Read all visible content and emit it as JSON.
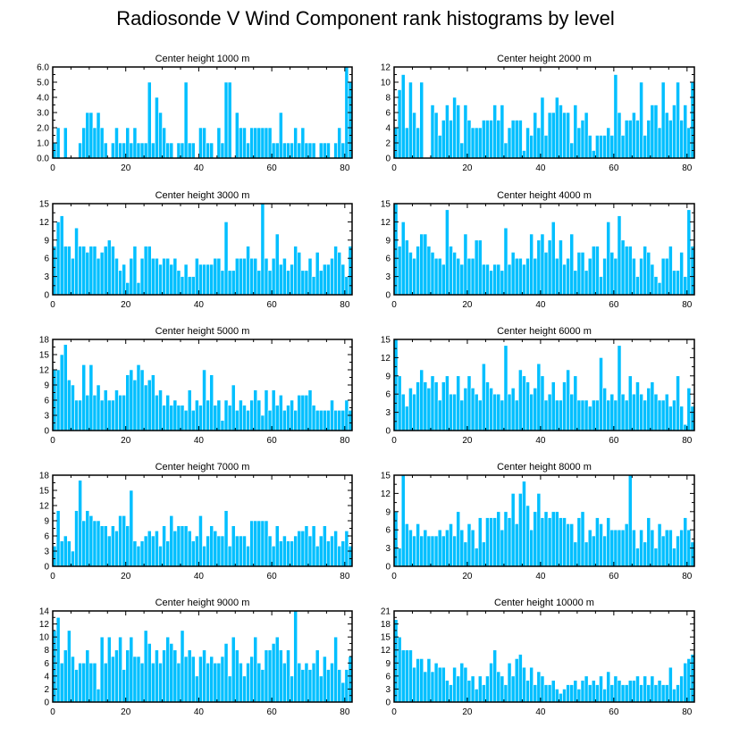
{
  "figure": {
    "title": "Radiosonde V Wind Component rank histograms by level",
    "bar_color": "#00BFFF",
    "frame_color": "#000000",
    "background": "#FFFFFF"
  },
  "chart_data": [
    {
      "type": "bar",
      "title": "Center height 1000 m",
      "xlim": [
        0,
        82
      ],
      "ylim": [
        0,
        6
      ],
      "xticks": [
        0,
        20,
        40,
        60,
        80
      ],
      "xtick_labels": [
        "0",
        "20",
        "40",
        "60",
        "80"
      ],
      "yticks": [
        0,
        1,
        2,
        3,
        4,
        5,
        6
      ],
      "ytick_labels": [
        "0.0",
        "1.0",
        "2.0",
        "3.0",
        "4.0",
        "5.0",
        "6.0"
      ],
      "y_axis_side": "left",
      "values": [
        1,
        2,
        0,
        2,
        0,
        0,
        0,
        1,
        2,
        3,
        3,
        2,
        3,
        2,
        1,
        0,
        1,
        2,
        1,
        1,
        2,
        1,
        2,
        1,
        1,
        1,
        5,
        1,
        4,
        3,
        2,
        1,
        1,
        0,
        1,
        1,
        5,
        1,
        1,
        0,
        2,
        2,
        1,
        1,
        0,
        2,
        1,
        5,
        5,
        0,
        3,
        2,
        2,
        1,
        2,
        2,
        2,
        2,
        2,
        2,
        1,
        1,
        3,
        1,
        1,
        1,
        2,
        1,
        2,
        1,
        1,
        1,
        0,
        1,
        1,
        1,
        0,
        1,
        2,
        1,
        6,
        5
      ]
    },
    {
      "type": "bar",
      "title": "Center height 2000 m",
      "xlim": [
        0,
        82
      ],
      "ylim": [
        0,
        12
      ],
      "xticks": [
        0,
        20,
        40,
        60,
        80
      ],
      "xtick_labels": [
        "0",
        "20",
        "40",
        "60",
        "80"
      ],
      "yticks": [
        0,
        2,
        4,
        6,
        8,
        10,
        12
      ],
      "ytick_labels": [
        "0",
        "2",
        "4",
        "6",
        "8",
        "10",
        "12"
      ],
      "y_axis_side": "left",
      "values": [
        4,
        9,
        11,
        4,
        10,
        6,
        4,
        10,
        0,
        0,
        7,
        6,
        3,
        5,
        7,
        5,
        8,
        7,
        2,
        7,
        5,
        4,
        4,
        4,
        5,
        5,
        5,
        7,
        5,
        7,
        2,
        4,
        5,
        5,
        5,
        1,
        4,
        3,
        6,
        4,
        8,
        3,
        6,
        6,
        8,
        7,
        6,
        6,
        2,
        7,
        4,
        5,
        6,
        3,
        1,
        3,
        3,
        3,
        4,
        3,
        11,
        6,
        3,
        5,
        5,
        6,
        5,
        10,
        3,
        5,
        7,
        7,
        4,
        10,
        6,
        5,
        7,
        10,
        5,
        7,
        4,
        10
      ]
    },
    {
      "type": "bar",
      "title": "Center height 3000 m",
      "xlim": [
        0,
        82
      ],
      "ylim": [
        0,
        15
      ],
      "xticks": [
        0,
        20,
        40,
        60,
        80
      ],
      "xtick_labels": [
        "0",
        "20",
        "40",
        "60",
        "80"
      ],
      "yticks": [
        0,
        3,
        6,
        9,
        12,
        15
      ],
      "ytick_labels": [
        "0",
        "3",
        "6",
        "9",
        "12",
        "15"
      ],
      "y_axis_side": "left",
      "values": [
        8,
        12,
        13,
        8,
        8,
        6,
        11,
        8,
        8,
        7,
        8,
        8,
        6,
        7,
        8,
        9,
        8,
        6,
        4,
        5,
        2,
        6,
        8,
        2,
        6,
        8,
        8,
        6,
        6,
        5,
        6,
        6,
        5,
        6,
        4,
        3,
        5,
        3,
        3,
        6,
        5,
        5,
        5,
        5,
        6,
        6,
        4,
        12,
        4,
        4,
        6,
        6,
        6,
        8,
        6,
        6,
        4,
        15,
        6,
        4,
        6,
        10,
        5,
        6,
        4,
        5,
        8,
        7,
        4,
        4,
        6,
        3,
        7,
        4,
        5,
        5,
        6,
        8,
        7,
        5,
        3,
        8
      ]
    },
    {
      "type": "bar",
      "title": "Center height 4000 m",
      "xlim": [
        0,
        82
      ],
      "ylim": [
        0,
        15
      ],
      "xticks": [
        0,
        20,
        40,
        60,
        80
      ],
      "xtick_labels": [
        "0",
        "20",
        "40",
        "60",
        "80"
      ],
      "yticks": [
        0,
        3,
        6,
        9,
        12,
        15
      ],
      "ytick_labels": [
        "0",
        "3",
        "6",
        "9",
        "12",
        "15"
      ],
      "y_axis_side": "left",
      "values": [
        15,
        8,
        12,
        9,
        7,
        6,
        8,
        10,
        10,
        8,
        7,
        6,
        6,
        5,
        14,
        8,
        7,
        6,
        5,
        10,
        6,
        6,
        9,
        9,
        5,
        5,
        4,
        5,
        5,
        4,
        11,
        5,
        7,
        6,
        6,
        5,
        6,
        10,
        6,
        9,
        10,
        7,
        9,
        12,
        6,
        9,
        5,
        6,
        10,
        4,
        7,
        7,
        4,
        6,
        8,
        8,
        3,
        6,
        12,
        7,
        6,
        13,
        9,
        8,
        8,
        6,
        3,
        6,
        8,
        7,
        5,
        3,
        2,
        6,
        6,
        8,
        4,
        4,
        7,
        3,
        14,
        8
      ]
    },
    {
      "type": "bar",
      "title": "Center height 5000 m",
      "xlim": [
        0,
        82
      ],
      "ylim": [
        0,
        18
      ],
      "xticks": [
        0,
        20,
        40,
        60,
        80
      ],
      "xtick_labels": [
        "0",
        "20",
        "40",
        "60",
        "80"
      ],
      "yticks": [
        0,
        3,
        6,
        9,
        12,
        15,
        18
      ],
      "ytick_labels": [
        "0",
        "3",
        "6",
        "9",
        "12",
        "15",
        "18"
      ],
      "y_axis_side": "left",
      "values": [
        12,
        12,
        15,
        17,
        10,
        9,
        6,
        6,
        13,
        7,
        13,
        7,
        9,
        6,
        8,
        6,
        6,
        8,
        7,
        7,
        11,
        12,
        10,
        13,
        12,
        9,
        10,
        11,
        7,
        8,
        5,
        7,
        5,
        6,
        5,
        5,
        4,
        8,
        4,
        6,
        5,
        12,
        6,
        11,
        5,
        6,
        2,
        6,
        5,
        9,
        4,
        6,
        5,
        4,
        6,
        8,
        6,
        3,
        8,
        4,
        8,
        5,
        7,
        4,
        5,
        6,
        4,
        7,
        7,
        7,
        8,
        5,
        4,
        4,
        4,
        4,
        6,
        4,
        4,
        4,
        6,
        4
      ]
    },
    {
      "type": "bar",
      "title": "Center height 6000 m",
      "xlim": [
        0,
        82
      ],
      "ylim": [
        0,
        15
      ],
      "xticks": [
        0,
        20,
        40,
        60,
        80
      ],
      "xtick_labels": [
        "0",
        "20",
        "40",
        "60",
        "80"
      ],
      "yticks": [
        0,
        3,
        6,
        9,
        12,
        15
      ],
      "ytick_labels": [
        "0",
        "3",
        "6",
        "9",
        "12",
        "15"
      ],
      "y_axis_side": "left",
      "values": [
        15,
        9,
        6,
        4,
        7,
        6,
        8,
        10,
        8,
        7,
        9,
        8,
        5,
        8,
        9,
        6,
        6,
        9,
        5,
        7,
        9,
        7,
        6,
        5,
        11,
        8,
        7,
        6,
        6,
        5,
        14,
        6,
        7,
        5,
        10,
        9,
        8,
        6,
        7,
        11,
        9,
        5,
        6,
        8,
        5,
        5,
        8,
        10,
        6,
        9,
        5,
        5,
        5,
        4,
        5,
        5,
        12,
        7,
        5,
        6,
        5,
        14,
        6,
        5,
        9,
        6,
        8,
        6,
        5,
        7,
        8,
        6,
        5,
        5,
        6,
        4,
        5,
        9,
        4,
        1,
        7,
        4
      ]
    },
    {
      "type": "bar",
      "title": "Center height 7000 m",
      "xlim": [
        0,
        82
      ],
      "ylim": [
        0,
        18
      ],
      "xticks": [
        0,
        20,
        40,
        60,
        80
      ],
      "xtick_labels": [
        "0",
        "20",
        "40",
        "60",
        "80"
      ],
      "yticks": [
        0,
        3,
        6,
        9,
        12,
        15,
        18
      ],
      "ytick_labels": [
        "0",
        "3",
        "6",
        "9",
        "12",
        "15",
        "18"
      ],
      "y_axis_side": "left",
      "values": [
        4,
        11,
        5,
        6,
        5,
        3,
        11,
        17,
        9,
        11,
        10,
        9,
        9,
        8,
        8,
        6,
        8,
        7,
        10,
        10,
        8,
        15,
        5,
        4,
        5,
        6,
        7,
        6,
        7,
        4,
        8,
        5,
        10,
        7,
        8,
        8,
        8,
        7,
        5,
        6,
        10,
        4,
        6,
        8,
        7,
        6,
        6,
        11,
        4,
        8,
        6,
        6,
        6,
        4,
        9,
        9,
        9,
        9,
        9,
        6,
        4,
        8,
        5,
        6,
        5,
        5,
        6,
        7,
        7,
        8,
        6,
        8,
        4,
        6,
        8,
        5,
        6,
        7,
        4,
        5,
        7,
        4
      ]
    },
    {
      "type": "bar",
      "title": "Center height 8000 m",
      "xlim": [
        0,
        82
      ],
      "ylim": [
        0,
        15
      ],
      "xticks": [
        0,
        20,
        40,
        60,
        80
      ],
      "xtick_labels": [
        "0",
        "20",
        "40",
        "60",
        "80"
      ],
      "yticks": [
        0,
        3,
        6,
        9,
        12,
        15
      ],
      "ytick_labels": [
        "0",
        "3",
        "6",
        "9",
        "12",
        "15"
      ],
      "y_axis_side": "left",
      "values": [
        9,
        3,
        15,
        7,
        6,
        5,
        7,
        5,
        6,
        5,
        5,
        5,
        6,
        5,
        6,
        7,
        5,
        9,
        6,
        4,
        7,
        6,
        3,
        8,
        4,
        8,
        8,
        8,
        9,
        6,
        9,
        8,
        12,
        7,
        12,
        14,
        10,
        6,
        9,
        12,
        8,
        9,
        8,
        9,
        9,
        8,
        8,
        7,
        7,
        4,
        8,
        9,
        4,
        6,
        5,
        8,
        7,
        5,
        8,
        6,
        6,
        6,
        6,
        7,
        16,
        6,
        3,
        6,
        4,
        8,
        6,
        3,
        7,
        5,
        6,
        6,
        3,
        5,
        6,
        8,
        6,
        4
      ]
    },
    {
      "type": "bar",
      "title": "Center height 9000 m",
      "xlim": [
        0,
        82
      ],
      "ylim": [
        0,
        14
      ],
      "xticks": [
        0,
        20,
        40,
        60,
        80
      ],
      "xtick_labels": [
        "0",
        "20",
        "40",
        "60",
        "80"
      ],
      "yticks": [
        0,
        2,
        4,
        6,
        8,
        10,
        12,
        14
      ],
      "ytick_labels": [
        "0",
        "2",
        "4",
        "6",
        "8",
        "10",
        "12",
        "14"
      ],
      "y_axis_side": "left",
      "values": [
        11,
        13,
        6,
        8,
        11,
        7,
        5,
        6,
        6,
        8,
        6,
        6,
        2,
        10,
        6,
        10,
        7,
        8,
        10,
        5,
        8,
        10,
        7,
        7,
        6,
        11,
        9,
        6,
        8,
        6,
        8,
        10,
        9,
        8,
        6,
        11,
        7,
        8,
        7,
        4,
        7,
        8,
        6,
        7,
        6,
        6,
        7,
        9,
        4,
        10,
        8,
        6,
        4,
        6,
        7,
        10,
        6,
        5,
        8,
        8,
        9,
        10,
        8,
        6,
        8,
        4,
        14,
        6,
        5,
        6,
        5,
        6,
        8,
        4,
        7,
        5,
        6,
        10,
        5,
        3,
        5,
        7
      ]
    },
    {
      "type": "bar",
      "title": "Center height 10000 m",
      "xlim": [
        0,
        82
      ],
      "ylim": [
        0,
        21
      ],
      "xticks": [
        0,
        20,
        40,
        60,
        80
      ],
      "xtick_labels": [
        "0",
        "20",
        "40",
        "60",
        "80"
      ],
      "yticks": [
        0,
        3,
        6,
        9,
        12,
        15,
        18,
        21
      ],
      "ytick_labels": [
        "0",
        "3",
        "6",
        "9",
        "12",
        "15",
        "18",
        "21"
      ],
      "y_axis_side": "left",
      "values": [
        19,
        15,
        12,
        12,
        12,
        8,
        10,
        10,
        7,
        10,
        7,
        9,
        8,
        8,
        5,
        4,
        8,
        6,
        9,
        8,
        5,
        6,
        3,
        6,
        4,
        6,
        9,
        12,
        7,
        6,
        4,
        9,
        6,
        10,
        11,
        8,
        5,
        8,
        4,
        7,
        6,
        4,
        4,
        5,
        3,
        2,
        3,
        4,
        4,
        5,
        3,
        5,
        6,
        4,
        5,
        4,
        6,
        3,
        7,
        4,
        6,
        5,
        4,
        4,
        5,
        5,
        6,
        4,
        6,
        4,
        6,
        4,
        5,
        4,
        4,
        8,
        3,
        4,
        6,
        9,
        10,
        11
      ]
    }
  ]
}
